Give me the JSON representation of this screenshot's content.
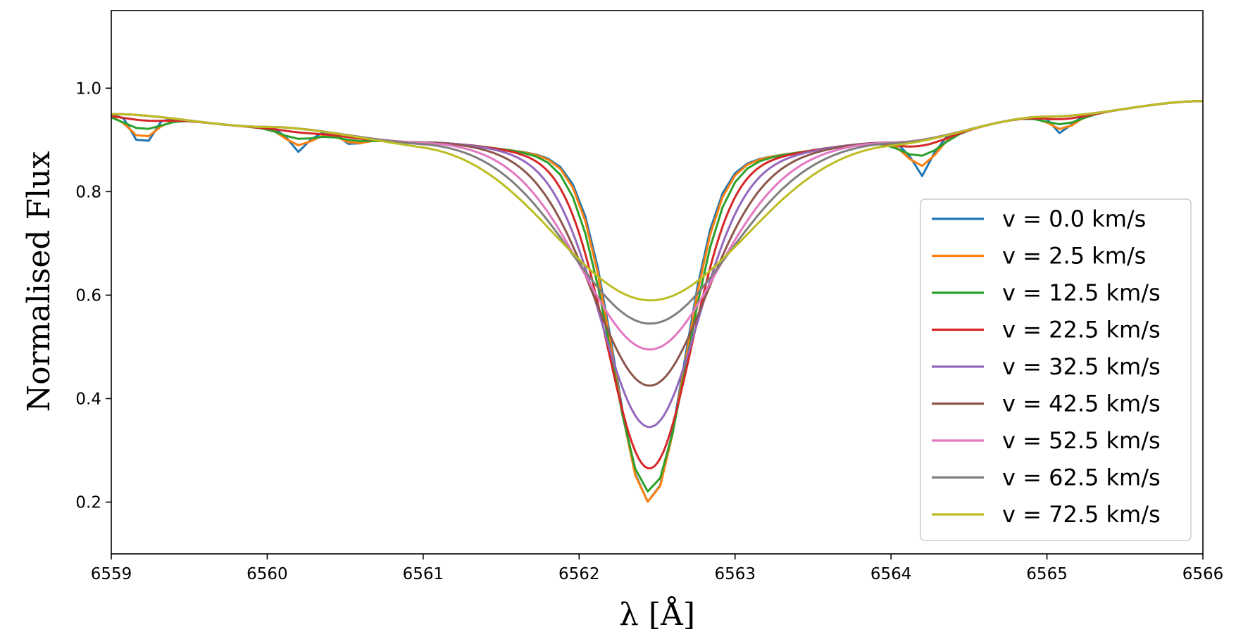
{
  "chart_data": {
    "type": "line",
    "title": "",
    "xlabel": "λ  [Å]",
    "ylabel": "Normalised Flux",
    "xlim": [
      6559,
      6566
    ],
    "ylim": [
      0.1,
      1.15
    ],
    "xticks": [
      6559,
      6560,
      6561,
      6562,
      6563,
      6564,
      6565,
      6566
    ],
    "xtick_labels": [
      "6559",
      "6560",
      "6561",
      "6562",
      "6563",
      "6564",
      "6565",
      "6566"
    ],
    "yticks": [
      0.2,
      0.4,
      0.6,
      0.8,
      1.0
    ],
    "ytick_labels": [
      "0.2",
      "0.4",
      "0.6",
      "0.8",
      "1.0"
    ],
    "grid": false,
    "legend_position": "lower-right",
    "continuum": {
      "x": [
        6559.0,
        6560.0,
        6561.0,
        6562.0,
        6563.0,
        6564.0,
        6565.0,
        6566.0
      ],
      "y": [
        0.95,
        0.925,
        0.895,
        0.87,
        0.865,
        0.895,
        0.945,
        0.975
      ]
    },
    "blends": [
      {
        "center": 6559.2,
        "depth": 0.06,
        "width": 0.06
      },
      {
        "center": 6560.2,
        "depth": 0.045,
        "width": 0.06
      },
      {
        "center": 6560.55,
        "depth": 0.02,
        "width": 0.05
      },
      {
        "center": 6564.2,
        "depth": 0.07,
        "width": 0.06
      },
      {
        "center": 6565.1,
        "depth": 0.035,
        "width": 0.05
      }
    ],
    "line_center": 6562.45,
    "series": [
      {
        "name": "v = 0.0 km/s",
        "color": "#1f77b4",
        "min_flux": 0.2,
        "sigma": 0.22
      },
      {
        "name": "v = 2.5 km/s",
        "color": "#ff7f0e",
        "min_flux": 0.2,
        "sigma": 0.225
      },
      {
        "name": "v = 12.5 km/s",
        "color": "#2ca02c",
        "min_flux": 0.22,
        "sigma": 0.24
      },
      {
        "name": "v = 22.5 km/s",
        "color": "#d62728",
        "min_flux": 0.265,
        "sigma": 0.27
      },
      {
        "name": "v = 32.5 km/s",
        "color": "#9467bd",
        "min_flux": 0.345,
        "sigma": 0.31
      },
      {
        "name": "v = 42.5 km/s",
        "color": "#8c564b",
        "min_flux": 0.425,
        "sigma": 0.36
      },
      {
        "name": "v = 52.5 km/s",
        "color": "#e377c2",
        "min_flux": 0.495,
        "sigma": 0.42
      },
      {
        "name": "v = 62.5 km/s",
        "color": "#7f7f7f",
        "min_flux": 0.545,
        "sigma": 0.48
      },
      {
        "name": "v = 72.5 km/s",
        "color": "#bcbd22",
        "min_flux": 0.59,
        "sigma": 0.56
      }
    ]
  }
}
